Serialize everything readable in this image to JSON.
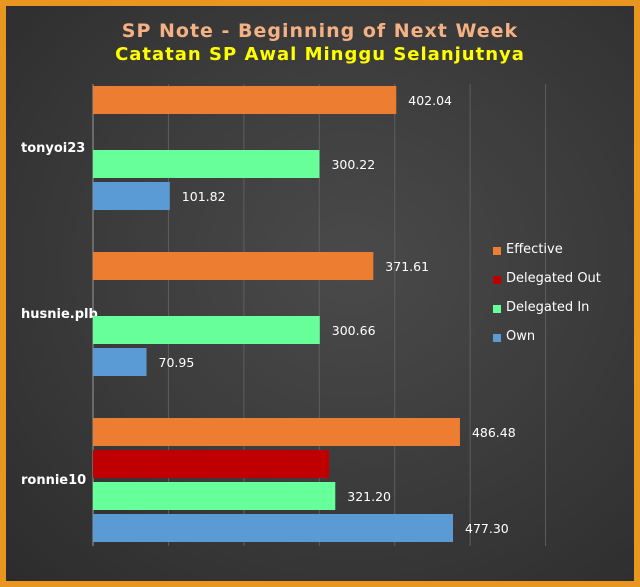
{
  "chart_data": {
    "type": "bar",
    "orientation": "horizontal",
    "title": "SP Note - Beginning of Next Week",
    "subtitle": "Catatan SP Awal Minggu Selanjutnya",
    "categories": [
      "tonyoi23",
      "husnie.plb",
      "ronnie10"
    ],
    "series": [
      {
        "name": "Effective",
        "color": "#ed7d31",
        "values": [
          402.04,
          371.61,
          486.48
        ],
        "labels": [
          "402.04",
          "371.61",
          "486.48"
        ]
      },
      {
        "name": "Delegated Out",
        "color": "#c00000",
        "values": [
          null,
          null,
          313
        ],
        "labels": [
          "",
          "",
          ""
        ]
      },
      {
        "name": "Delegated In",
        "color": "#66ff99",
        "values": [
          300.22,
          300.66,
          321.2
        ],
        "labels": [
          "300.22",
          "300.66",
          "321.20"
        ]
      },
      {
        "name": "Own",
        "color": "#5b9bd5",
        "values": [
          101.82,
          70.95,
          477.3
        ],
        "labels": [
          "101.82",
          "70.95",
          "477.30"
        ]
      }
    ],
    "xlim": [
      0,
      600
    ],
    "grid": true,
    "legend": "right"
  }
}
